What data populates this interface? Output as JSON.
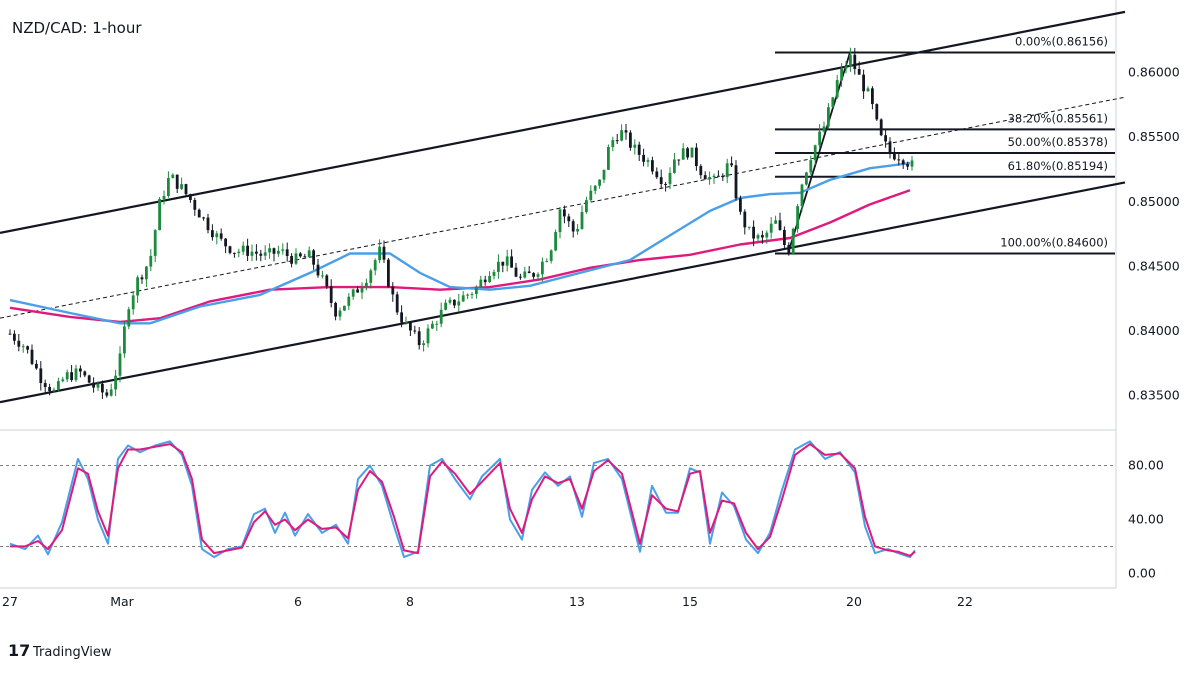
{
  "chart_data": {
    "type": "candlestick",
    "title": "NZD/CAD: 1-hour",
    "watermark": "TradingView",
    "price_axis": {
      "ylim": [
        0.8325,
        0.865
      ],
      "ticks": [
        "0.86000",
        "0.85500",
        "0.85000",
        "0.84500",
        "0.84000",
        "0.83500"
      ],
      "tick_values": [
        0.86,
        0.855,
        0.85,
        0.845,
        0.84,
        0.835
      ]
    },
    "time_axis": {
      "ticks": [
        "27",
        "Mar",
        "6",
        "8",
        "13",
        "15",
        "20",
        "22"
      ],
      "tick_index": [
        0,
        112,
        288,
        400,
        567,
        680,
        844,
        955
      ]
    },
    "fibonacci": [
      {
        "label": "0.00%(0.86156)",
        "level": 0.86156
      },
      {
        "label": "38.20%(0.85561)",
        "level": 0.85561
      },
      {
        "label": "50.00%(0.85378)",
        "level": 0.85378
      },
      {
        "label": "61.80%(0.85194)",
        "level": 0.85194
      },
      {
        "label": "100.00%(0.84600)",
        "level": 0.846
      }
    ],
    "fib_x_range": [
      775,
      1115
    ],
    "swing_line": [
      [
        778,
        0.846
      ],
      [
        840,
        0.86156
      ]
    ],
    "channel": {
      "upper": [
        [
          0,
          0.8476
        ],
        [
          1115,
          0.8647
        ]
      ],
      "lower": [
        [
          0,
          0.8345
        ],
        [
          1115,
          0.8515
        ]
      ],
      "mid": [
        [
          0,
          0.841
        ],
        [
          1115,
          0.8581
        ]
      ]
    },
    "sma_short": {
      "name": "MA blue",
      "color": "#4a9fe8",
      "points": [
        [
          0,
          0.8424
        ],
        [
          60,
          0.8414
        ],
        [
          110,
          0.8406
        ],
        [
          140,
          0.8406
        ],
        [
          190,
          0.8419
        ],
        [
          250,
          0.8428
        ],
        [
          300,
          0.8445
        ],
        [
          340,
          0.846
        ],
        [
          380,
          0.846
        ],
        [
          410,
          0.8445
        ],
        [
          440,
          0.8434
        ],
        [
          480,
          0.8432
        ],
        [
          520,
          0.8435
        ],
        [
          570,
          0.8445
        ],
        [
          620,
          0.8455
        ],
        [
          660,
          0.8474
        ],
        [
          700,
          0.8493
        ],
        [
          730,
          0.8503
        ],
        [
          760,
          0.8506
        ],
        [
          790,
          0.8507
        ],
        [
          820,
          0.8517
        ],
        [
          860,
          0.8526
        ],
        [
          900,
          0.853
        ]
      ]
    },
    "sma_long": {
      "name": "MA magenta",
      "color": "#e0197d",
      "points": [
        [
          0,
          0.8418
        ],
        [
          60,
          0.8411
        ],
        [
          110,
          0.8407
        ],
        [
          150,
          0.841
        ],
        [
          200,
          0.8423
        ],
        [
          260,
          0.8432
        ],
        [
          320,
          0.8434
        ],
        [
          380,
          0.8434
        ],
        [
          430,
          0.8432
        ],
        [
          480,
          0.8434
        ],
        [
          530,
          0.844
        ],
        [
          580,
          0.8449
        ],
        [
          630,
          0.8455
        ],
        [
          680,
          0.8459
        ],
        [
          730,
          0.8467
        ],
        [
          780,
          0.8472
        ],
        [
          820,
          0.8484
        ],
        [
          860,
          0.8498
        ],
        [
          900,
          0.8509
        ]
      ]
    },
    "candles_path": [
      [
        0,
        0.8398
      ],
      [
        15,
        0.8388
      ],
      [
        30,
        0.8365
      ],
      [
        45,
        0.8352
      ],
      [
        55,
        0.8365
      ],
      [
        70,
        0.8368
      ],
      [
        85,
        0.8356
      ],
      [
        98,
        0.835
      ],
      [
        110,
        0.8378
      ],
      [
        118,
        0.842
      ],
      [
        128,
        0.844
      ],
      [
        140,
        0.8455
      ],
      [
        150,
        0.85
      ],
      [
        160,
        0.852
      ],
      [
        170,
        0.8512
      ],
      [
        180,
        0.8502
      ],
      [
        195,
        0.8485
      ],
      [
        210,
        0.847
      ],
      [
        225,
        0.8462
      ],
      [
        240,
        0.8462
      ],
      [
        255,
        0.8458
      ],
      [
        270,
        0.8462
      ],
      [
        285,
        0.8455
      ],
      [
        300,
        0.8458
      ],
      [
        315,
        0.8435
      ],
      [
        325,
        0.8415
      ],
      [
        340,
        0.8425
      ],
      [
        355,
        0.844
      ],
      [
        370,
        0.8462
      ],
      [
        385,
        0.842
      ],
      [
        395,
        0.8405
      ],
      [
        410,
        0.839
      ],
      [
        420,
        0.8402
      ],
      [
        435,
        0.8418
      ],
      [
        450,
        0.8425
      ],
      [
        465,
        0.8432
      ],
      [
        480,
        0.8448
      ],
      [
        495,
        0.8455
      ],
      [
        510,
        0.844
      ],
      [
        525,
        0.8445
      ],
      [
        540,
        0.8462
      ],
      [
        550,
        0.8495
      ],
      [
        565,
        0.8475
      ],
      [
        575,
        0.85
      ],
      [
        590,
        0.8515
      ],
      [
        600,
        0.8545
      ],
      [
        610,
        0.8555
      ],
      [
        625,
        0.854
      ],
      [
        640,
        0.853
      ],
      [
        655,
        0.8515
      ],
      [
        665,
        0.8535
      ],
      [
        680,
        0.854
      ],
      [
        690,
        0.8525
      ],
      [
        705,
        0.8515
      ],
      [
        720,
        0.853
      ],
      [
        730,
        0.849
      ],
      [
        740,
        0.8475
      ],
      [
        752,
        0.847
      ],
      [
        765,
        0.8485
      ],
      [
        778,
        0.846
      ],
      [
        790,
        0.851
      ],
      [
        800,
        0.8535
      ],
      [
        815,
        0.856
      ],
      [
        828,
        0.8595
      ],
      [
        840,
        0.8612
      ],
      [
        850,
        0.8595
      ],
      [
        860,
        0.858
      ],
      [
        870,
        0.855
      ],
      [
        880,
        0.8538
      ],
      [
        892,
        0.8535
      ],
      [
        902,
        0.8528
      ]
    ],
    "stoch": {
      "levels_ticks": [
        "80.00",
        "40.00",
        "0.00"
      ],
      "tick_values": [
        80,
        40,
        0
      ],
      "dashed_levels": [
        80,
        20
      ],
      "k": [
        [
          0,
          22
        ],
        [
          15,
          18
        ],
        [
          28,
          28
        ],
        [
          38,
          14
        ],
        [
          52,
          38
        ],
        [
          68,
          85
        ],
        [
          78,
          70
        ],
        [
          88,
          40
        ],
        [
          98,
          22
        ],
        [
          108,
          85
        ],
        [
          118,
          95
        ],
        [
          130,
          90
        ],
        [
          145,
          95
        ],
        [
          160,
          98
        ],
        [
          172,
          88
        ],
        [
          182,
          65
        ],
        [
          192,
          18
        ],
        [
          204,
          12
        ],
        [
          218,
          18
        ],
        [
          232,
          20
        ],
        [
          244,
          44
        ],
        [
          255,
          48
        ],
        [
          265,
          30
        ],
        [
          275,
          45
        ],
        [
          285,
          28
        ],
        [
          298,
          44
        ],
        [
          312,
          30
        ],
        [
          326,
          36
        ],
        [
          338,
          22
        ],
        [
          348,
          70
        ],
        [
          360,
          80
        ],
        [
          372,
          65
        ],
        [
          384,
          35
        ],
        [
          394,
          12
        ],
        [
          408,
          16
        ],
        [
          420,
          80
        ],
        [
          432,
          85
        ],
        [
          445,
          70
        ],
        [
          460,
          55
        ],
        [
          472,
          72
        ],
        [
          490,
          85
        ],
        [
          500,
          40
        ],
        [
          512,
          25
        ],
        [
          522,
          62
        ],
        [
          535,
          75
        ],
        [
          548,
          65
        ],
        [
          560,
          72
        ],
        [
          572,
          42
        ],
        [
          584,
          82
        ],
        [
          598,
          85
        ],
        [
          612,
          70
        ],
        [
          630,
          16
        ],
        [
          642,
          65
        ],
        [
          656,
          45
        ],
        [
          668,
          45
        ],
        [
          680,
          78
        ],
        [
          690,
          75
        ],
        [
          700,
          22
        ],
        [
          712,
          60
        ],
        [
          724,
          50
        ],
        [
          736,
          25
        ],
        [
          748,
          15
        ],
        [
          760,
          30
        ],
        [
          772,
          62
        ],
        [
          785,
          92
        ],
        [
          800,
          98
        ],
        [
          815,
          85
        ],
        [
          830,
          90
        ],
        [
          845,
          75
        ],
        [
          855,
          35
        ],
        [
          865,
          15
        ],
        [
          878,
          18
        ],
        [
          888,
          15
        ],
        [
          900,
          12
        ],
        [
          905,
          17
        ]
      ],
      "d": [
        [
          0,
          20
        ],
        [
          15,
          20
        ],
        [
          28,
          24
        ],
        [
          38,
          18
        ],
        [
          52,
          32
        ],
        [
          68,
          78
        ],
        [
          78,
          74
        ],
        [
          88,
          46
        ],
        [
          98,
          28
        ],
        [
          108,
          78
        ],
        [
          118,
          92
        ],
        [
          130,
          92
        ],
        [
          145,
          94
        ],
        [
          160,
          96
        ],
        [
          172,
          90
        ],
        [
          182,
          70
        ],
        [
          192,
          25
        ],
        [
          204,
          15
        ],
        [
          218,
          17
        ],
        [
          232,
          19
        ],
        [
          244,
          38
        ],
        [
          255,
          46
        ],
        [
          265,
          36
        ],
        [
          275,
          40
        ],
        [
          285,
          32
        ],
        [
          298,
          40
        ],
        [
          312,
          33
        ],
        [
          326,
          34
        ],
        [
          338,
          26
        ],
        [
          348,
          62
        ],
        [
          360,
          76
        ],
        [
          372,
          68
        ],
        [
          384,
          42
        ],
        [
          394,
          17
        ],
        [
          408,
          15
        ],
        [
          420,
          72
        ],
        [
          432,
          83
        ],
        [
          445,
          74
        ],
        [
          460,
          59
        ],
        [
          472,
          68
        ],
        [
          490,
          82
        ],
        [
          500,
          48
        ],
        [
          512,
          30
        ],
        [
          522,
          55
        ],
        [
          535,
          72
        ],
        [
          548,
          67
        ],
        [
          560,
          70
        ],
        [
          572,
          48
        ],
        [
          584,
          76
        ],
        [
          598,
          84
        ],
        [
          612,
          74
        ],
        [
          630,
          22
        ],
        [
          642,
          58
        ],
        [
          656,
          48
        ],
        [
          668,
          46
        ],
        [
          680,
          74
        ],
        [
          690,
          76
        ],
        [
          700,
          30
        ],
        [
          712,
          54
        ],
        [
          724,
          52
        ],
        [
          736,
          30
        ],
        [
          748,
          18
        ],
        [
          760,
          27
        ],
        [
          772,
          55
        ],
        [
          785,
          88
        ],
        [
          800,
          96
        ],
        [
          815,
          88
        ],
        [
          830,
          89
        ],
        [
          845,
          78
        ],
        [
          855,
          42
        ],
        [
          865,
          20
        ],
        [
          878,
          17
        ],
        [
          888,
          16
        ],
        [
          900,
          13
        ],
        [
          905,
          16
        ]
      ],
      "k_color": "#4a9fe8",
      "d_color": "#e0197d"
    },
    "colors": {
      "up": "#1e8a3e",
      "down": "#131722",
      "line": "#131722",
      "grid": "#d0d3da"
    }
  }
}
